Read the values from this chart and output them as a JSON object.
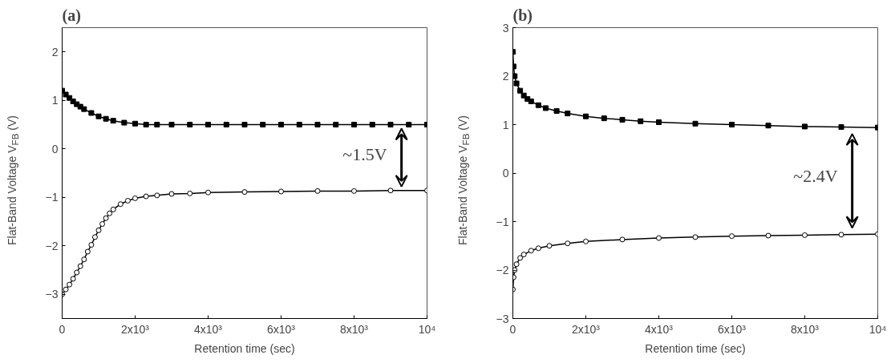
{
  "chart_data": [
    {
      "type": "line",
      "title": "(a)",
      "xlabel": "Retention time (sec)",
      "ylabel": "Flat-Band Voltage V$_{FB}$ (V)",
      "xlim": [
        0,
        10000
      ],
      "ylim": [
        -3.5,
        2.5
      ],
      "xticks": [
        0,
        {
          "value": 2000,
          "label": "2x10³"
        },
        {
          "value": 4000,
          "label": "4x10³"
        },
        {
          "value": 6000,
          "label": "6x10³"
        },
        {
          "value": 8000,
          "label": "8x10³"
        },
        {
          "value": 10000,
          "label": "10⁴"
        }
      ],
      "yticks": [
        -3,
        -2,
        -1,
        0,
        1,
        2
      ],
      "grid": false,
      "annotations": [
        "~1.5V"
      ],
      "series": [
        {
          "color": "#000000",
          "marker": "square",
          "x": [
            0,
            100,
            200,
            300,
            400,
            500,
            600,
            800,
            1000,
            1200,
            1400,
            1700,
            2000,
            2300,
            2600,
            3000,
            3500,
            4000,
            4500,
            5000,
            5500,
            6000,
            6500,
            7000,
            7500,
            8000,
            8500,
            9000,
            9500,
            10000
          ],
          "values": [
            1.2,
            1.12,
            1.05,
            0.98,
            0.92,
            0.87,
            0.82,
            0.74,
            0.67,
            0.62,
            0.58,
            0.54,
            0.52,
            0.5,
            0.5,
            0.5,
            0.5,
            0.5,
            0.5,
            0.5,
            0.5,
            0.5,
            0.5,
            0.5,
            0.5,
            0.5,
            0.5,
            0.5,
            0.5,
            0.5
          ]
        },
        {
          "color": "#000000",
          "marker": "circle",
          "x": [
            0,
            100,
            200,
            300,
            400,
            500,
            600,
            700,
            800,
            900,
            1000,
            1100,
            1200,
            1300,
            1400,
            1600,
            1800,
            2000,
            2300,
            2600,
            3000,
            3500,
            4000,
            5000,
            6000,
            7000,
            8000,
            9000,
            10000
          ],
          "values": [
            -3.0,
            -2.9,
            -2.8,
            -2.68,
            -2.55,
            -2.42,
            -2.28,
            -2.12,
            -1.98,
            -1.82,
            -1.68,
            -1.55,
            -1.43,
            -1.33,
            -1.25,
            -1.14,
            -1.07,
            -1.02,
            -0.98,
            -0.96,
            -0.93,
            -0.92,
            -0.9,
            -0.89,
            -0.88,
            -0.87,
            -0.87,
            -0.86,
            -0.86
          ]
        }
      ]
    },
    {
      "type": "line",
      "title": "(b)",
      "xlabel": "Retention time (sec)",
      "ylabel": "Flat-Band Voltage V$_{FB}$ (V)",
      "xlim": [
        0,
        10000
      ],
      "ylim": [
        -3,
        3
      ],
      "xticks": [
        0,
        {
          "value": 2000,
          "label": "2x10³"
        },
        {
          "value": 4000,
          "label": "4x10³"
        },
        {
          "value": 6000,
          "label": "6x10³"
        },
        {
          "value": 8000,
          "label": "8x10³"
        },
        {
          "value": 10000,
          "label": "10⁴"
        }
      ],
      "yticks": [
        -3,
        -2,
        -1,
        0,
        1,
        2,
        3
      ],
      "grid": false,
      "annotations": [
        "~2.4V"
      ],
      "series": [
        {
          "color": "#000000",
          "marker": "square",
          "x": [
            0,
            20,
            50,
            100,
            200,
            300,
            400,
            500,
            700,
            900,
            1200,
            1500,
            2000,
            2500,
            3000,
            3500,
            4000,
            5000,
            6000,
            7000,
            8000,
            9000,
            10000
          ],
          "values": [
            2.5,
            2.2,
            2.0,
            1.85,
            1.7,
            1.6,
            1.53,
            1.48,
            1.4,
            1.34,
            1.28,
            1.23,
            1.17,
            1.13,
            1.1,
            1.07,
            1.05,
            1.02,
            1.0,
            0.98,
            0.96,
            0.95,
            0.94
          ]
        },
        {
          "color": "#000000",
          "marker": "circle",
          "x": [
            0,
            20,
            50,
            100,
            200,
            300,
            500,
            700,
            1000,
            1500,
            2000,
            3000,
            4000,
            5000,
            6000,
            7000,
            8000,
            9000,
            10000
          ],
          "values": [
            -2.4,
            -2.15,
            -2.0,
            -1.88,
            -1.75,
            -1.68,
            -1.6,
            -1.55,
            -1.5,
            -1.45,
            -1.41,
            -1.37,
            -1.34,
            -1.32,
            -1.3,
            -1.29,
            -1.28,
            -1.27,
            -1.26
          ]
        }
      ]
    }
  ]
}
